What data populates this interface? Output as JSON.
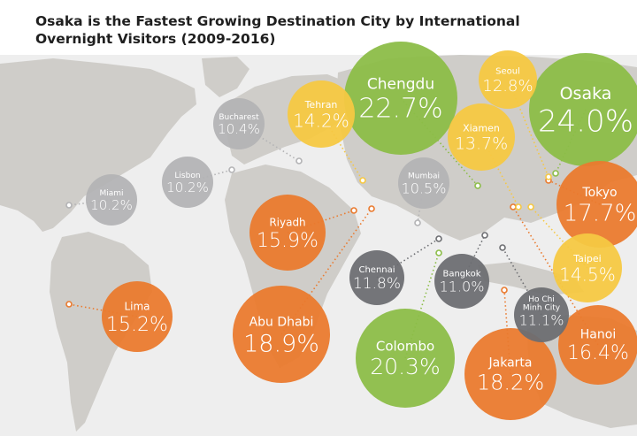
{
  "title_line1": "Osaka is the Fastest Growing Destination City by International",
  "title_line2": "Overnight Visitors (2009-2016)",
  "colors": {
    "ocean": "#eeeeee",
    "land": "#cfcdc9",
    "green": "#8cbd48",
    "yellow": "#f6c842",
    "orange": "#ea7a2e",
    "light_gray": "#b3b3b5",
    "dark_gray": "#6d6e72"
  },
  "chart_data": {
    "type": "bubble-map",
    "title": "Osaka is the Fastest Growing Destination City by International Overnight Visitors (2009-2016)",
    "unit": "%",
    "cities": [
      {
        "city": "Osaka",
        "value": 24.0,
        "label": "24.0%",
        "color": "green"
      },
      {
        "city": "Chengdu",
        "value": 22.7,
        "label": "22.7%",
        "color": "green"
      },
      {
        "city": "Colombo",
        "value": 20.3,
        "label": "20.3%",
        "color": "green"
      },
      {
        "city": "Abu Dhabi",
        "value": 18.9,
        "label": "18.9%",
        "color": "orange"
      },
      {
        "city": "Jakarta",
        "value": 18.2,
        "label": "18.2%",
        "color": "orange"
      },
      {
        "city": "Tokyo",
        "value": 17.7,
        "label": "17.7%",
        "color": "orange"
      },
      {
        "city": "Hanoi",
        "value": 16.4,
        "label": "16.4%",
        "color": "orange"
      },
      {
        "city": "Riyadh",
        "value": 15.9,
        "label": "15.9%",
        "color": "orange"
      },
      {
        "city": "Lima",
        "value": 15.2,
        "label": "15.2%",
        "color": "orange"
      },
      {
        "city": "Taipei",
        "value": 14.5,
        "label": "14.5%",
        "color": "yellow"
      },
      {
        "city": "Tehran",
        "value": 14.2,
        "label": "14.2%",
        "color": "yellow"
      },
      {
        "city": "Xiamen",
        "value": 13.7,
        "label": "13.7%",
        "color": "yellow"
      },
      {
        "city": "Seoul",
        "value": 12.8,
        "label": "12.8%",
        "color": "yellow"
      },
      {
        "city": "Chennai",
        "value": 11.8,
        "label": "11.8%",
        "color": "dark_gray"
      },
      {
        "city": "Ho Chi Minh City",
        "value": 11.1,
        "label": "11.1%",
        "color": "dark_gray"
      },
      {
        "city": "Bangkok",
        "value": 11.0,
        "label": "11.0%",
        "color": "dark_gray"
      },
      {
        "city": "Mumbai",
        "value": 10.5,
        "label": "10.5%",
        "color": "light_gray"
      },
      {
        "city": "Bucharest",
        "value": 10.4,
        "label": "10.4%",
        "color": "light_gray"
      },
      {
        "city": "Lisbon",
        "value": 10.2,
        "label": "10.2%",
        "color": "light_gray"
      },
      {
        "city": "Miami",
        "value": 10.2,
        "label": "10.2%",
        "color": "light_gray"
      }
    ]
  }
}
